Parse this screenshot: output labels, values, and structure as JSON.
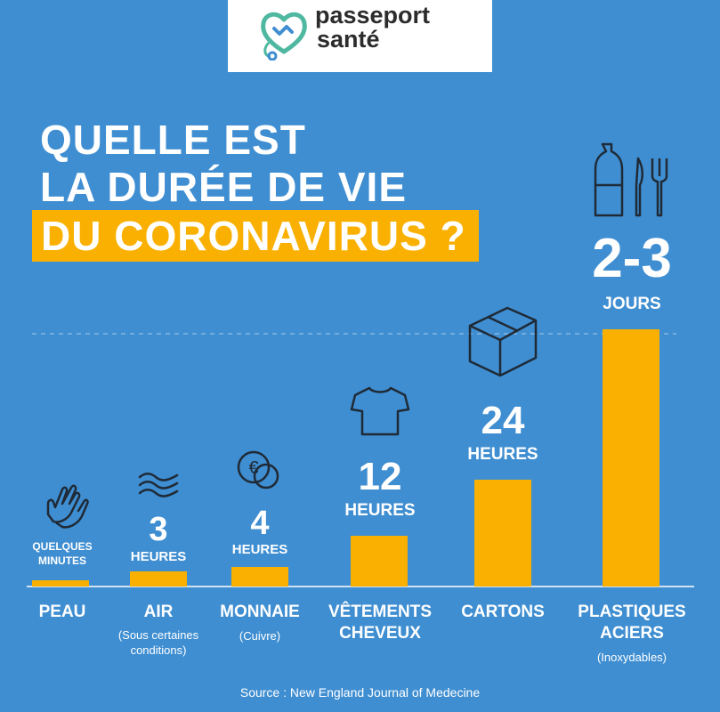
{
  "logo": {
    "line1": "passeport",
    "line2": "santé"
  },
  "title": {
    "line1": "QUELLE EST",
    "line2": "LA DURÉE DE VIE",
    "line3": "DU CORONAVIRUS ?"
  },
  "colors": {
    "background": "#3f8ed1",
    "bar": "#f9b000",
    "text": "#ffffff"
  },
  "chart_data": {
    "type": "bar",
    "categories": [
      "PEAU",
      "AIR",
      "MONNAIE",
      "VÊTEMENTS CHEVEUX",
      "CARTONS",
      "PLASTIQUES ACIERS"
    ],
    "values_hours": [
      0.25,
      3,
      4,
      12,
      24,
      60
    ],
    "value_labels": [
      {
        "big": "",
        "unit": "QUELQUES MINUTES"
      },
      {
        "big": "3",
        "unit": "HEURES"
      },
      {
        "big": "4",
        "unit": "HEURES"
      },
      {
        "big": "12",
        "unit": "HEURES"
      },
      {
        "big": "24",
        "unit": "HEURES"
      },
      {
        "big": "2-3",
        "unit": "JOURS"
      }
    ],
    "category_lines": [
      [
        "PEAU"
      ],
      [
        "AIR"
      ],
      [
        "MONNAIE"
      ],
      [
        "VÊTEMENTS",
        "CHEVEUX"
      ],
      [
        "CARTONS"
      ],
      [
        "PLASTIQUES",
        "ACIERS"
      ]
    ],
    "subtitles": [
      "",
      "(Sous certaines conditions)",
      "(Cuivre)",
      "",
      "",
      "(Inoxydables)"
    ],
    "icons": [
      "hands-icon",
      "wind-icon",
      "coin-icon",
      "tshirt-icon",
      "box-icon",
      "bottle-knife-fork-icon"
    ]
  },
  "source": "Source : New England Journal of Medecine"
}
